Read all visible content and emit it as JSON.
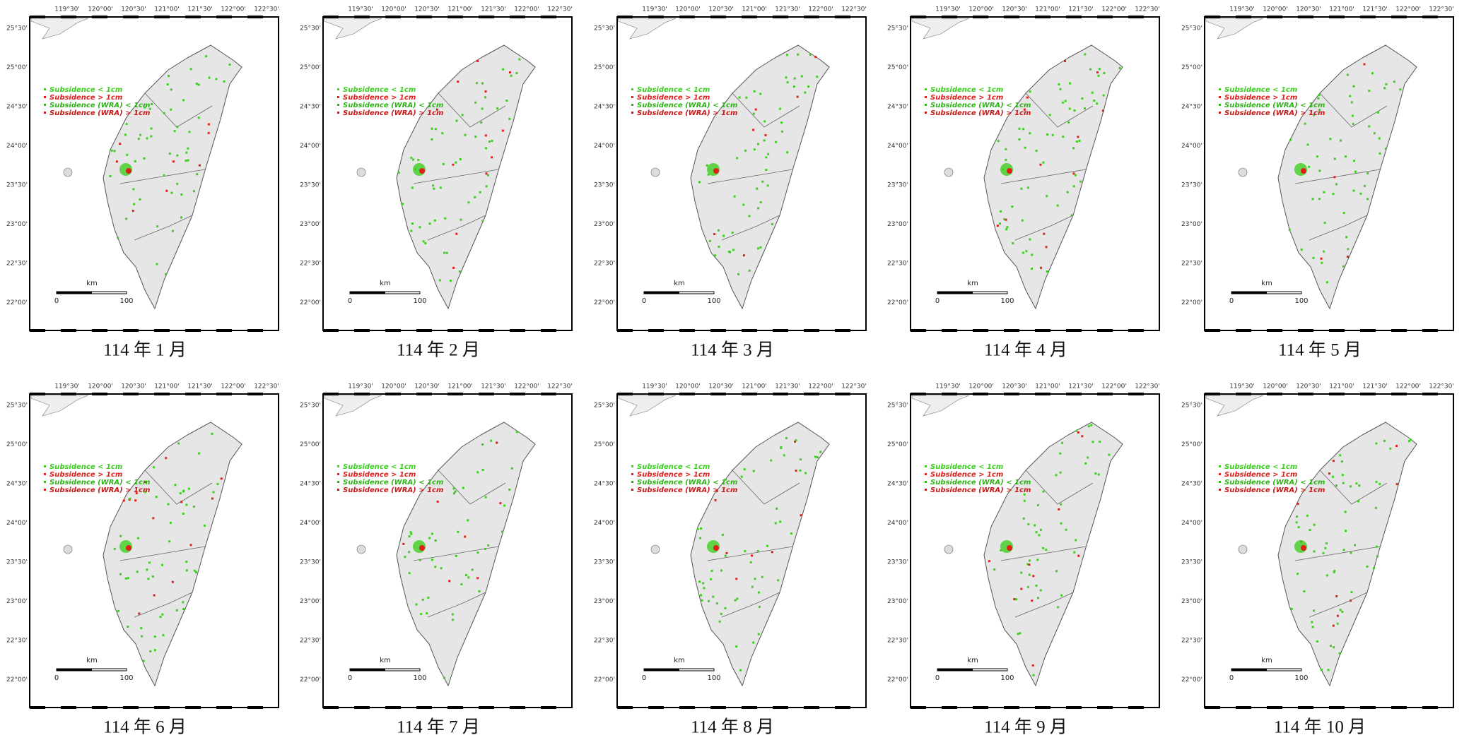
{
  "panels": [
    {
      "caption": "114 年 1 月"
    },
    {
      "caption": "114 年 2 月"
    },
    {
      "caption": "114 年 3 月"
    },
    {
      "caption": "114 年 4 月"
    },
    {
      "caption": "114 年 5 月"
    },
    {
      "caption": "114 年 6 月"
    },
    {
      "caption": "114 年 7 月"
    },
    {
      "caption": "114 年 8 月"
    },
    {
      "caption": "114 年 9 月"
    },
    {
      "caption": "114 年 10 月"
    }
  ],
  "map": {
    "lon_labels": [
      "119°30'",
      "120°00'",
      "120°30'",
      "121°00'",
      "121°30'",
      "122°00'",
      "122°30'"
    ],
    "lat_labels": [
      "25°30'",
      "25°00'",
      "24°30'",
      "24°00'",
      "23°30'",
      "23°00'",
      "22°30'",
      "22°00'"
    ],
    "legend": [
      {
        "label": "Subsidence < 1cm",
        "color": "#3ccf1e"
      },
      {
        "label": "Subsidence > 1cm",
        "color": "#e0201c"
      },
      {
        "label": "Subsidence (WRA) < 1cm",
        "color": "#2fb318"
      },
      {
        "label": "Subsidence (WRA) > 1cm",
        "color": "#c81818"
      }
    ],
    "scale_unit": "km",
    "scale_start": "0",
    "scale_end": "100"
  }
}
